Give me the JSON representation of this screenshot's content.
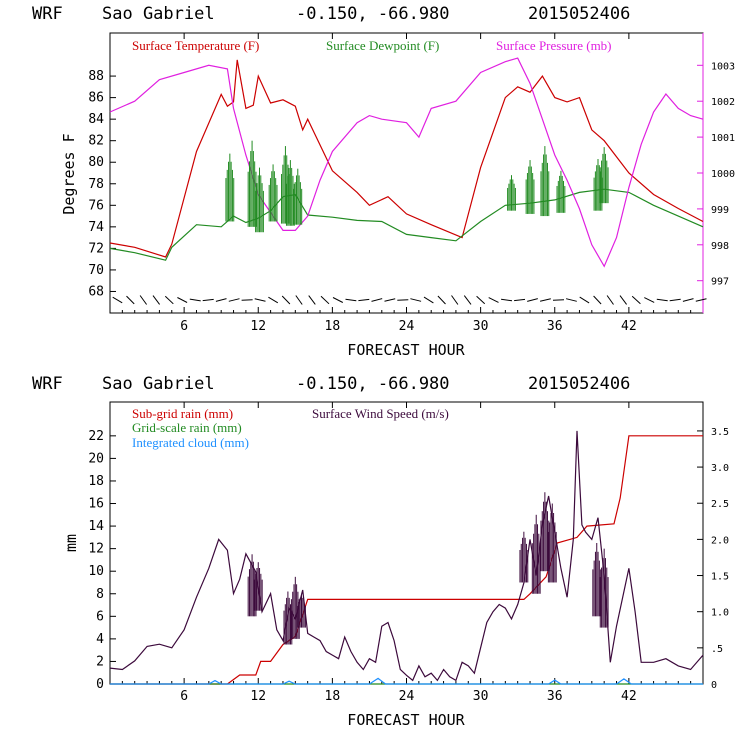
{
  "chart_data": [
    {
      "type": "line",
      "header": {
        "model": "WRF",
        "location": "Sao Gabriel",
        "coords": "-0.150, -66.980",
        "init": "2015052406"
      },
      "xlabel": "FORECAST HOUR",
      "ylabel": "Degrees F",
      "xlim": [
        0,
        48
      ],
      "ylim": [
        66,
        92
      ],
      "y2lim": [
        996.1,
        1003.9
      ],
      "x_ticks": [
        "6",
        "12",
        "18",
        "24",
        "30",
        "36",
        "42"
      ],
      "y_ticks": [
        "68",
        "70",
        "72",
        "74",
        "76",
        "78",
        "80",
        "82",
        "84",
        "86",
        "88"
      ],
      "y2_ticks": [
        "997",
        "998",
        "999",
        "1000",
        "1001",
        "1002",
        "1003"
      ],
      "legend": [
        {
          "label": "Surface Temperature (F)",
          "color": "#cc0000"
        },
        {
          "label": "Surface Dewpoint (F)",
          "color": "#228b22"
        },
        {
          "label": "Surface Pressure (mb)",
          "color": "#e020e0"
        }
      ],
      "series": [
        {
          "name": "Surface Temperature (F)",
          "axis": "left",
          "color": "#cc0000",
          "x": [
            0,
            2,
            4.5,
            5,
            7,
            9,
            9.5,
            10,
            10.3,
            11,
            11.6,
            12,
            13,
            14,
            15,
            15.6,
            16,
            18,
            20,
            21,
            22.5,
            24,
            26,
            28.5,
            30,
            32,
            33,
            34,
            35,
            36,
            37,
            38,
            39,
            40,
            42,
            44,
            46,
            48
          ],
          "y": [
            72.5,
            72.1,
            71.2,
            72.4,
            81,
            86.3,
            85.2,
            85.6,
            89.5,
            85,
            85.3,
            88,
            85.5,
            85.8,
            85.2,
            83,
            84,
            79.2,
            77.2,
            76,
            76.8,
            75.2,
            74.2,
            73,
            79.5,
            86,
            87,
            86.5,
            88,
            86,
            85.6,
            86,
            83,
            82,
            79,
            77,
            75.7,
            74.5
          ]
        },
        {
          "name": "Surface Dewpoint (F)",
          "axis": "left",
          "color": "#228b22",
          "x": [
            0,
            2,
            4.5,
            5,
            7,
            9,
            10,
            11,
            12,
            13,
            14,
            15,
            16,
            18,
            20,
            22,
            24,
            26,
            28,
            30,
            32,
            34,
            36,
            38,
            40,
            42,
            44,
            46,
            48
          ],
          "y": [
            72,
            71.6,
            70.9,
            72.1,
            74.2,
            74,
            75,
            74.4,
            74.8,
            75.5,
            76.8,
            77,
            75.1,
            74.9,
            74.6,
            74.5,
            73.3,
            73,
            72.7,
            74.5,
            76,
            76.2,
            76.5,
            77.2,
            77.5,
            77.2,
            76,
            75,
            74
          ]
        },
        {
          "name": "Surface Pressure (mb)",
          "axis": "right",
          "color": "#e020e0",
          "x": [
            0,
            2,
            4,
            6,
            8,
            9.5,
            10,
            11,
            12,
            13,
            14,
            15,
            16,
            17,
            18,
            20,
            21,
            22,
            24,
            25,
            26,
            28,
            30,
            32,
            33,
            34,
            35,
            36,
            37,
            38,
            39,
            40,
            41,
            42,
            43,
            44,
            45,
            46,
            47,
            48
          ],
          "y": [
            1001.7,
            1002,
            1002.6,
            1002.8,
            1003,
            1002.9,
            1001.8,
            1000.5,
            999.4,
            998.9,
            998.4,
            998.4,
            998.8,
            999.8,
            1000.6,
            1001.4,
            1001.6,
            1001.5,
            1001.4,
            1001,
            1001.8,
            1002,
            1002.8,
            1003.1,
            1003.2,
            1002.5,
            1001.5,
            1000.5,
            999.8,
            999,
            998,
            997.4,
            998.2,
            999.6,
            1000.8,
            1001.7,
            1002.2,
            1001.8,
            1001.6,
            1001.5
          ]
        }
      ],
      "rain_spikes": [
        {
          "x": 9.7,
          "low": 74.5,
          "high": 80.8
        },
        {
          "x": 11.5,
          "low": 74,
          "high": 82
        },
        {
          "x": 12.1,
          "low": 73.5,
          "high": 79.5
        },
        {
          "x": 13.2,
          "low": 74.5,
          "high": 79.8
        },
        {
          "x": 14.2,
          "low": 74.3,
          "high": 81.5
        },
        {
          "x": 14.6,
          "low": 74.1,
          "high": 80.2
        },
        {
          "x": 15.2,
          "low": 74.2,
          "high": 79.4
        },
        {
          "x": 32.5,
          "low": 75.5,
          "high": 78.8
        },
        {
          "x": 34,
          "low": 75.2,
          "high": 80.2
        },
        {
          "x": 35.2,
          "low": 75,
          "high": 81.5
        },
        {
          "x": 36.5,
          "low": 75.3,
          "high": 79.2
        },
        {
          "x": 39.5,
          "low": 75.5,
          "high": 80.3
        },
        {
          "x": 40,
          "low": 76.2,
          "high": 81.4
        }
      ]
    },
    {
      "type": "line",
      "header": {
        "model": "WRF",
        "location": "Sao Gabriel",
        "coords": "-0.150, -66.980",
        "init": "2015052406"
      },
      "xlabel": "FORECAST HOUR",
      "ylabel": "mm",
      "xlim": [
        0,
        48
      ],
      "ylim": [
        0,
        25
      ],
      "y2lim": [
        0,
        3.9
      ],
      "x_ticks": [
        "6",
        "12",
        "18",
        "24",
        "30",
        "36",
        "42"
      ],
      "y_ticks": [
        "0",
        "2",
        "4",
        "6",
        "8",
        "10",
        "12",
        "14",
        "16",
        "18",
        "20",
        "22"
      ],
      "y2_ticks": [
        "0",
        ".5",
        "1.0",
        "1.5",
        "2.0",
        "2.5",
        "3.0",
        "3.5"
      ],
      "legend": [
        {
          "label": "Sub-grid rain (mm)",
          "color": "#cc0000"
        },
        {
          "label": "Surface Wind Speed (m/s)",
          "color": "#3c0a3c"
        },
        {
          "label": "Grid-scale rain (mm)",
          "color": "#228b22"
        },
        {
          "label": "Integrated cloud (mm)",
          "color": "#1e90ff"
        }
      ],
      "series": [
        {
          "name": "Sub-grid rain (mm)",
          "axis": "left",
          "color": "#cc0000",
          "x": [
            0,
            9.5,
            10.5,
            11.8,
            12.2,
            13,
            14,
            15,
            16,
            33.5,
            34,
            35.3,
            36.2,
            37.8,
            38.6,
            40.8,
            41.3,
            42,
            48
          ],
          "y": [
            0,
            0,
            0.8,
            0.8,
            2,
            2,
            3.5,
            4.2,
            7.5,
            7.5,
            8,
            9.5,
            12.5,
            13,
            14,
            14.2,
            16.5,
            22,
            22
          ]
        },
        {
          "name": "Surface Wind Speed (m/s)",
          "axis": "right",
          "color": "#3c0a3c",
          "x": [
            0,
            1,
            2,
            3,
            4,
            5,
            6,
            7,
            8,
            8.8,
            9.5,
            10,
            10.5,
            11,
            11.8,
            12.3,
            13,
            13.5,
            14,
            14.5,
            15,
            15.6,
            16,
            16.5,
            17,
            17.5,
            18,
            18.5,
            19,
            19.5,
            20,
            20.5,
            21,
            21.5,
            22,
            22.5,
            23,
            23.5,
            24,
            24.5,
            25,
            25.5,
            26,
            26.5,
            27,
            27.5,
            28,
            28.5,
            29,
            29.5,
            30,
            30.5,
            31,
            31.5,
            32,
            32.5,
            33,
            33.5,
            34,
            34.5,
            35,
            35.5,
            36,
            36.5,
            37,
            37.5,
            37.8,
            38.2,
            38.5,
            39,
            39.5,
            40,
            40.5,
            41,
            41.5,
            42,
            42.5,
            43,
            44,
            45,
            46,
            47,
            48
          ],
          "y": [
            0.22,
            0.2,
            0.32,
            0.52,
            0.55,
            0.5,
            0.75,
            1.2,
            1.6,
            2.0,
            1.85,
            1.25,
            1.45,
            1.8,
            1.55,
            1.0,
            1.25,
            0.75,
            0.6,
            1.05,
            0.9,
            1.3,
            0.7,
            0.65,
            0.6,
            0.45,
            0.4,
            0.35,
            0.65,
            0.45,
            0.3,
            0.2,
            0.35,
            0.3,
            0.8,
            0.85,
            0.6,
            0.2,
            0.12,
            0.05,
            0.25,
            0.1,
            0.15,
            0.05,
            0.2,
            0.1,
            0.05,
            0.3,
            0.25,
            0.15,
            0.5,
            0.85,
            1.0,
            1.1,
            1.05,
            0.9,
            1.1,
            1.4,
            2.0,
            1.5,
            2.2,
            2.6,
            2.1,
            1.6,
            1.2,
            2.0,
            3.5,
            2.2,
            2.1,
            2.0,
            2.3,
            1.5,
            0.3,
            0.8,
            1.2,
            1.6,
            1.0,
            0.3,
            0.3,
            0.35,
            0.25,
            0.2,
            0.4
          ]
        },
        {
          "name": "Grid-scale rain (mm)",
          "axis": "left",
          "color": "#228b22",
          "x": [
            0,
            48
          ],
          "y": [
            0,
            0
          ]
        },
        {
          "name": "Integrated cloud (mm)",
          "axis": "left",
          "color": "#1e90ff",
          "x": [
            0,
            6,
            8,
            8.5,
            9,
            14,
            14.5,
            15,
            21,
            21.7,
            22.3,
            35.5,
            36,
            36.5,
            41,
            41.6,
            42.2,
            48
          ],
          "y": [
            0,
            0,
            0,
            0.3,
            0,
            0,
            0.25,
            0,
            0,
            0.5,
            0,
            0,
            0.35,
            0,
            0,
            0.45,
            0,
            0
          ]
        }
      ],
      "wind_spikes": [
        {
          "x": 11.5,
          "low": 6,
          "high": 11.5
        },
        {
          "x": 12,
          "low": 6.5,
          "high": 10.8
        },
        {
          "x": 14.4,
          "low": 3.5,
          "high": 8.2
        },
        {
          "x": 15,
          "low": 4,
          "high": 9.5
        },
        {
          "x": 15.5,
          "low": 5,
          "high": 8
        },
        {
          "x": 33.5,
          "low": 9,
          "high": 13.5
        },
        {
          "x": 34.5,
          "low": 8,
          "high": 15
        },
        {
          "x": 35.2,
          "low": 10,
          "high": 17
        },
        {
          "x": 35.8,
          "low": 9,
          "high": 16
        },
        {
          "x": 39.4,
          "low": 6,
          "high": 12.5
        },
        {
          "x": 40,
          "low": 5,
          "high": 12
        }
      ]
    }
  ]
}
